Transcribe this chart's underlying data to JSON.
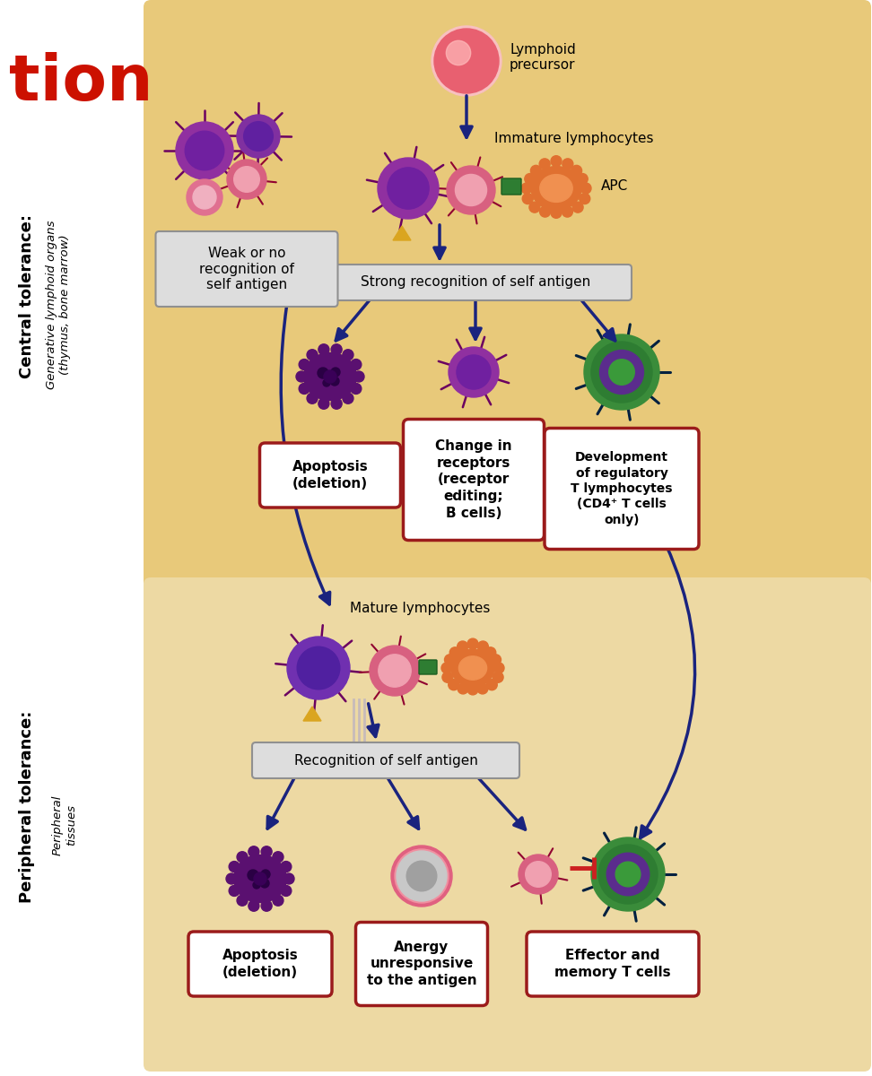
{
  "bg_color_top": "#E8C97A",
  "bg_color_bottom": "#EDD9A3",
  "title_color": "#CC1100",
  "central_tolerance_label": "Central tolerance:",
  "central_sublabel": "Generative lymphoid organs\n(thymus, bone marrow)",
  "peripheral_tolerance_label": "Peripheral tolerance:",
  "peripheral_sublabel": "Peripheral\ntissues",
  "lymphoid_precursor_label": "Lymphoid\nprecursor",
  "immature_lymphocytes_label": "Immature lymphocytes",
  "apc_label": "APC",
  "strong_recognition_label": "Strong recognition of self antigen",
  "weak_recognition_label": "Weak or no\nrecognition of\nself antigen",
  "apoptosis1_label": "Apoptosis\n(deletion)",
  "change_receptors_label": "Change in\nreceptors\n(receptor\nediting;\nB cells)",
  "regulatory_label": "Development\nof regulatory\nT lymphocytes\n(CD4⁺ T cells\nonly)",
  "mature_lymphocytes_label": "Mature lymphocytes",
  "recognition_self_label": "Recognition of self antigen",
  "apoptosis2_label": "Apoptosis\n(deletion)",
  "anergy_label": "Anergy\nunresponsive\nto the antigen",
  "effector_label": "Effector and\nmemory T cells",
  "arrow_color": "#1a237e",
  "box_border_color": "#9B1B1B",
  "box_fill_color": "#FFFFFF"
}
